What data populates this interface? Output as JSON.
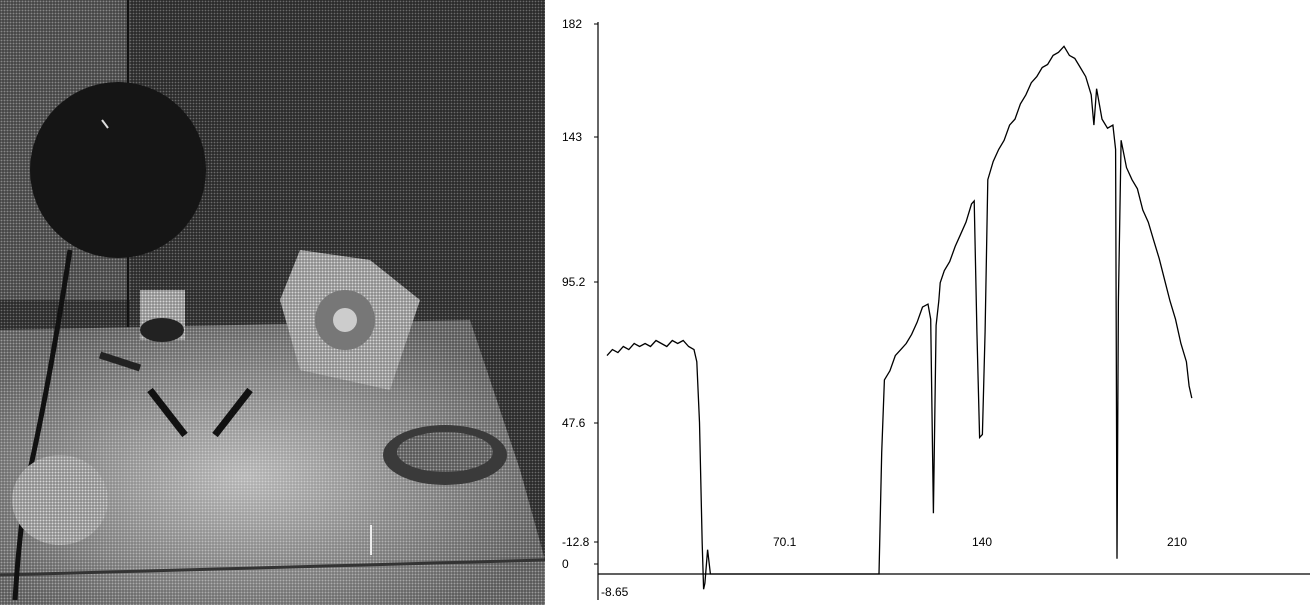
{
  "photo": {
    "description_icon": "grayscale-halftone-photo-icon"
  },
  "chart_data": {
    "type": "line",
    "title": "",
    "xlabel": "",
    "ylabel": "",
    "xlim": [
      -8.65,
      260
    ],
    "ylim": [
      -12.8,
      182
    ],
    "x_ticks": [
      {
        "value": 70.1,
        "label": "70.1"
      },
      {
        "value": 140,
        "label": "140"
      },
      {
        "value": 210,
        "label": "210"
      }
    ],
    "x_min_label": "-8.65",
    "y_ticks": [
      {
        "value": -12.8,
        "label": "-12.8"
      },
      {
        "value": 0,
        "label": "0"
      },
      {
        "value": 47.6,
        "label": "47.6"
      },
      {
        "value": 95.2,
        "label": "95.2"
      },
      {
        "value": 143,
        "label": "143"
      },
      {
        "value": 182,
        "label": "182"
      }
    ],
    "grid": false,
    "series": [
      {
        "color": "#000000",
        "points": [
          [
            0,
            72
          ],
          [
            2,
            74
          ],
          [
            4,
            73
          ],
          [
            6,
            75
          ],
          [
            8,
            74
          ],
          [
            10,
            76
          ],
          [
            12,
            75
          ],
          [
            14,
            76
          ],
          [
            16,
            75
          ],
          [
            18,
            77
          ],
          [
            20,
            76
          ],
          [
            22,
            75
          ],
          [
            24,
            77
          ],
          [
            26,
            76
          ],
          [
            28,
            77
          ],
          [
            30,
            75
          ],
          [
            32,
            74
          ],
          [
            33,
            70
          ],
          [
            34,
            50
          ],
          [
            35,
            10
          ],
          [
            35.5,
            -5
          ],
          [
            36,
            -3
          ],
          [
            37,
            8
          ],
          [
            38,
            0
          ],
          [
            39,
            0
          ],
          [
            100,
            0
          ],
          [
            101,
            40
          ],
          [
            102,
            64
          ],
          [
            104,
            67
          ],
          [
            106,
            72
          ],
          [
            108,
            74
          ],
          [
            110,
            76
          ],
          [
            112,
            79
          ],
          [
            114,
            83
          ],
          [
            116,
            88
          ],
          [
            118,
            89
          ],
          [
            119,
            84
          ],
          [
            120,
            20
          ],
          [
            121,
            82
          ],
          [
            122,
            90
          ],
          [
            122.5,
            96
          ],
          [
            124,
            100
          ],
          [
            126,
            103
          ],
          [
            128,
            108
          ],
          [
            130,
            112
          ],
          [
            132,
            116
          ],
          [
            134,
            122
          ],
          [
            135,
            123
          ],
          [
            136,
            80
          ],
          [
            137,
            45
          ],
          [
            138,
            46
          ],
          [
            139,
            80
          ],
          [
            140,
            130
          ],
          [
            142,
            136
          ],
          [
            144,
            140
          ],
          [
            146,
            143
          ],
          [
            148,
            148
          ],
          [
            150,
            150
          ],
          [
            152,
            155
          ],
          [
            154,
            158
          ],
          [
            156,
            162
          ],
          [
            158,
            164
          ],
          [
            160,
            167
          ],
          [
            162,
            168
          ],
          [
            164,
            171
          ],
          [
            166,
            172
          ],
          [
            168,
            174
          ],
          [
            170,
            171
          ],
          [
            172,
            170
          ],
          [
            174,
            167
          ],
          [
            176,
            164
          ],
          [
            178,
            158
          ],
          [
            179,
            148
          ],
          [
            180,
            160
          ],
          [
            182,
            150
          ],
          [
            184,
            147
          ],
          [
            186,
            148
          ],
          [
            187,
            140
          ],
          [
            187.5,
            5
          ],
          [
            188,
            90
          ],
          [
            189,
            143
          ],
          [
            191,
            134
          ],
          [
            193,
            130
          ],
          [
            195,
            127
          ],
          [
            197,
            120
          ],
          [
            199,
            116
          ],
          [
            201,
            110
          ],
          [
            203,
            104
          ],
          [
            205,
            97
          ],
          [
            207,
            90
          ],
          [
            209,
            84
          ],
          [
            211,
            76
          ],
          [
            213,
            70
          ],
          [
            214,
            62
          ],
          [
            215,
            58
          ]
        ]
      }
    ]
  }
}
